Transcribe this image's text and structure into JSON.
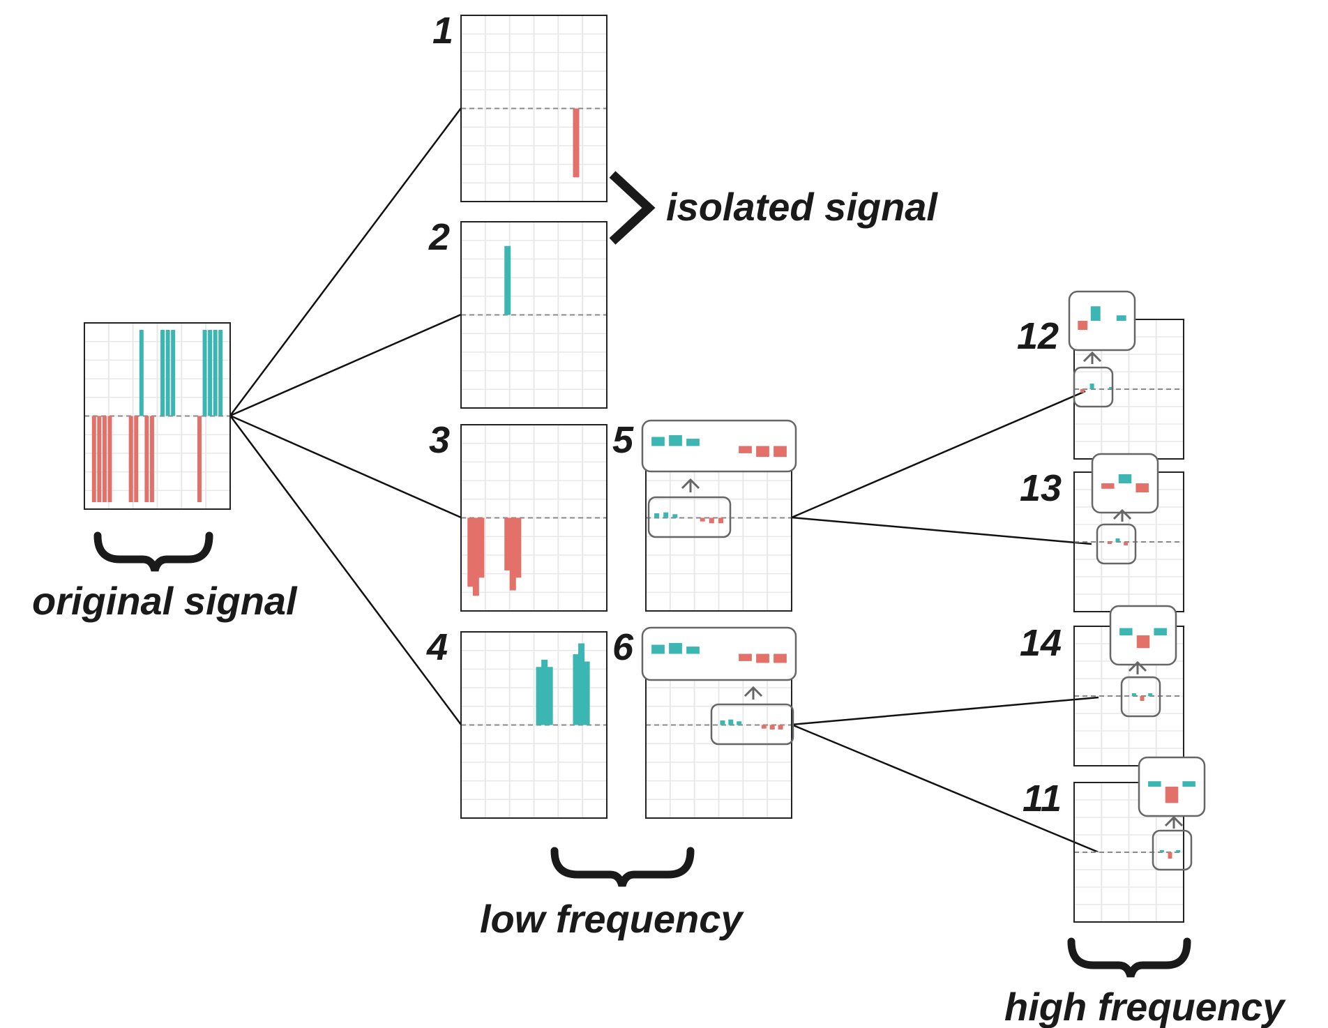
{
  "colors": {
    "positive": "#3bb6b3",
    "negative": "#e3716a",
    "grid": "#e8e8e8",
    "frame": "#222222",
    "baseline": "#888888",
    "connector": "#111111",
    "callout": "#666666"
  },
  "labels": {
    "original_signal": "original signal",
    "isolated_signal": "isolated signal",
    "low_frequency": "low frequency",
    "high_frequency": "high frequency"
  },
  "original": {
    "bars": [
      -0.95,
      -0.95,
      -0.95,
      -0.95,
      0,
      0,
      0,
      -0.95,
      -0.95,
      0.95,
      -0.95,
      -0.95,
      0,
      0.95,
      0.95,
      0.95,
      0,
      0,
      0,
      0,
      -0.95,
      0.95,
      0.95,
      0.95,
      0.95
    ]
  },
  "components": [
    {
      "id": "1",
      "label": "1",
      "bars": [
        0,
        0,
        0,
        0,
        0,
        0,
        0,
        0,
        0,
        0,
        0,
        0,
        0,
        0,
        0,
        0,
        0,
        0,
        0,
        0,
        -0.76,
        0,
        0,
        0,
        0
      ]
    },
    {
      "id": "2",
      "label": "2",
      "bars": [
        0,
        0,
        0,
        0,
        0,
        0,
        0,
        0.76,
        0,
        0,
        0,
        0,
        0,
        0,
        0,
        0,
        0,
        0,
        0,
        0,
        0,
        0,
        0,
        0,
        0
      ]
    },
    {
      "id": "3",
      "label": "3",
      "bars": [
        -0.76,
        -0.86,
        -0.66,
        0,
        0,
        0,
        0,
        -0.58,
        -0.8,
        -0.66,
        0,
        0,
        0,
        0,
        0,
        0,
        0,
        0,
        0,
        0,
        0,
        0,
        0,
        0,
        0
      ]
    },
    {
      "id": "4",
      "label": "4",
      "bars": [
        0,
        0,
        0,
        0,
        0,
        0,
        0,
        0,
        0,
        0,
        0,
        0,
        0,
        0.64,
        0.72,
        0.64,
        0,
        0,
        0,
        0,
        0.78,
        0.9,
        0.7,
        0,
        0
      ]
    },
    {
      "id": "5",
      "label": "5",
      "bars": [
        0.05,
        0.06,
        0.04,
        0,
        0,
        -0.04,
        -0.06,
        -0.06
      ]
    },
    {
      "id": "6",
      "label": "6",
      "bars": [
        0.05,
        0.06,
        0.04,
        0,
        0,
        -0.04,
        -0.05,
        -0.05
      ]
    },
    {
      "id": "12",
      "label": "12",
      "bars": [
        -0.05,
        0.08,
        0,
        0.03
      ]
    },
    {
      "id": "13",
      "label": "13",
      "bars": [
        -0.03,
        0.05,
        -0.05
      ]
    },
    {
      "id": "14",
      "label": "14",
      "bars": [
        0.04,
        -0.07,
        0.04
      ]
    },
    {
      "id": "11",
      "label": "11",
      "bars": [
        0.03,
        -0.09,
        0.03
      ]
    }
  ]
}
